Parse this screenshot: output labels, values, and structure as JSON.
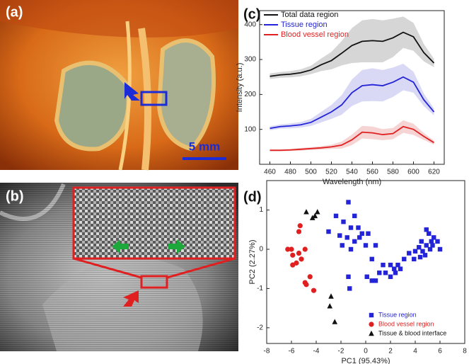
{
  "images": [
    {
      "label": "(a)",
      "scale_bar": "5 mm"
    },
    {
      "label": "(b)"
    }
  ],
  "chart_data": [
    {
      "type": "line",
      "panel_label": "(c)",
      "x_label": "Wavelength (nm)",
      "y_label": "Intensity (a.u.)",
      "x": [
        460,
        470,
        480,
        490,
        500,
        510,
        520,
        530,
        540,
        550,
        560,
        570,
        580,
        590,
        600,
        610,
        620
      ],
      "xlim": [
        450,
        630
      ],
      "xticks": [
        460,
        480,
        500,
        520,
        540,
        560,
        580,
        600,
        620
      ],
      "ylim": [
        0,
        440
      ],
      "yticks": [
        100,
        200,
        300,
        400
      ],
      "grid": false,
      "legend": "top-left",
      "series": [
        {
          "name": "Total data region",
          "color": "#111111",
          "band_color": "#cccccc",
          "values": [
            252,
            256,
            258,
            262,
            270,
            285,
            297,
            318,
            340,
            352,
            354,
            352,
            362,
            378,
            365,
            320,
            290
          ],
          "upper": [
            260,
            264,
            267,
            272,
            282,
            303,
            322,
            353,
            390,
            412,
            416,
            412,
            417,
            423,
            405,
            345,
            302
          ],
          "lower": [
            244,
            248,
            249,
            252,
            258,
            267,
            272,
            283,
            290,
            292,
            292,
            292,
            307,
            333,
            325,
            295,
            278
          ]
        },
        {
          "name": "Tissue region",
          "color": "#2323d8",
          "band_color": "#cfcff4",
          "values": [
            103,
            108,
            110,
            113,
            120,
            135,
            150,
            170,
            205,
            225,
            228,
            225,
            235,
            250,
            235,
            185,
            150
          ],
          "upper": [
            109,
            114,
            117,
            121,
            130,
            150,
            170,
            198,
            243,
            270,
            275,
            270,
            277,
            288,
            265,
            203,
            160
          ],
          "lower": [
            97,
            102,
            103,
            105,
            110,
            120,
            130,
            142,
            167,
            180,
            181,
            180,
            193,
            212,
            205,
            167,
            140
          ]
        },
        {
          "name": "Blood vessel region",
          "color": "#e02020",
          "band_color": "#f4c9c9",
          "values": [
            40,
            40,
            41,
            43,
            45,
            47,
            50,
            55,
            70,
            92,
            90,
            85,
            88,
            108,
            100,
            80,
            62
          ],
          "upper": [
            43,
            43,
            44,
            47,
            49,
            52,
            56,
            65,
            85,
            110,
            108,
            101,
            104,
            126,
            116,
            90,
            68
          ],
          "lower": [
            37,
            37,
            38,
            39,
            41,
            42,
            44,
            45,
            55,
            74,
            72,
            69,
            72,
            90,
            84,
            70,
            56
          ]
        }
      ]
    },
    {
      "type": "scatter",
      "panel_label": "(d)",
      "x_label": "PC1 (95.43%)",
      "y_label": "PC2 (2.27%)",
      "xlim": [
        -8,
        8
      ],
      "xticks": [
        -8,
        -6,
        -4,
        -2,
        0,
        2,
        4,
        6,
        8
      ],
      "ylim": [
        -2.4,
        1.75
      ],
      "yticks": [
        -2,
        -1,
        0,
        1
      ],
      "grid": false,
      "legend": "bottom-right",
      "series": [
        {
          "name": "Tissue region",
          "color": "#2323d8",
          "marker": "square",
          "x": [
            -1.4,
            -0.9,
            -1.8,
            -2.4,
            -1.2,
            -0.6,
            -0.3,
            -1.9,
            -1.5,
            -0.9,
            -0.5,
            0,
            0.2,
            -1.2,
            -2.1,
            -3,
            -1.4,
            -1.3,
            0.5,
            0.8,
            1.4,
            1.6,
            2,
            2.3,
            2.6,
            2,
            2.4,
            2.8,
            0.1,
            0.5,
            1.1,
            0.8,
            3.1,
            3.5,
            4,
            4.3,
            4.5,
            4.6,
            4.9,
            5.1,
            5.3,
            5.5,
            5.8,
            6,
            4.8,
            5.2,
            4.4,
            3.9,
            5.4,
            4.9
          ],
          "values": [
            1.2,
            0.85,
            0.7,
            0.85,
            0.55,
            0.55,
            0.4,
            0.1,
            0.3,
            0.2,
            0.3,
            0.1,
            0.4,
            0,
            0.35,
            0.45,
            -0.7,
            -1,
            -0.25,
            0.1,
            -0.4,
            -0.6,
            -0.4,
            -0.5,
            -0.4,
            -0.7,
            -0.6,
            -0.5,
            -0.7,
            -0.8,
            -0.6,
            -0.8,
            -0.25,
            -0.1,
            -0.05,
            0.05,
            0.2,
            -0.05,
            0.5,
            0.4,
            0.2,
            0.3,
            0.2,
            0,
            -0.15,
            0,
            -0.2,
            -0.25,
            0.1,
            0.1
          ]
        },
        {
          "name": "Blood vessel region",
          "color": "#e02020",
          "marker": "circle",
          "x": [
            -5.3,
            -5.4,
            -6.3,
            -6,
            -5.9,
            -5.4,
            -4.9,
            -5.6,
            -5.9,
            -5.2,
            -4.5,
            -4.9,
            -4.2,
            -4.8
          ],
          "values": [
            0.6,
            0.45,
            0,
            0,
            -0.15,
            -0.1,
            0,
            -0.35,
            -0.4,
            -0.25,
            -0.7,
            -0.85,
            -1.05,
            -0.9
          ]
        },
        {
          "name": "Tissue & blood interface",
          "color": "#111111",
          "marker": "triangle",
          "x": [
            -4.8,
            -4.1,
            -3.9,
            -4.3,
            -2.8,
            -2.9,
            -2.5
          ],
          "values": [
            0.95,
            0.85,
            0.95,
            0.8,
            -1.2,
            -1.45,
            -1.85
          ]
        }
      ]
    }
  ]
}
